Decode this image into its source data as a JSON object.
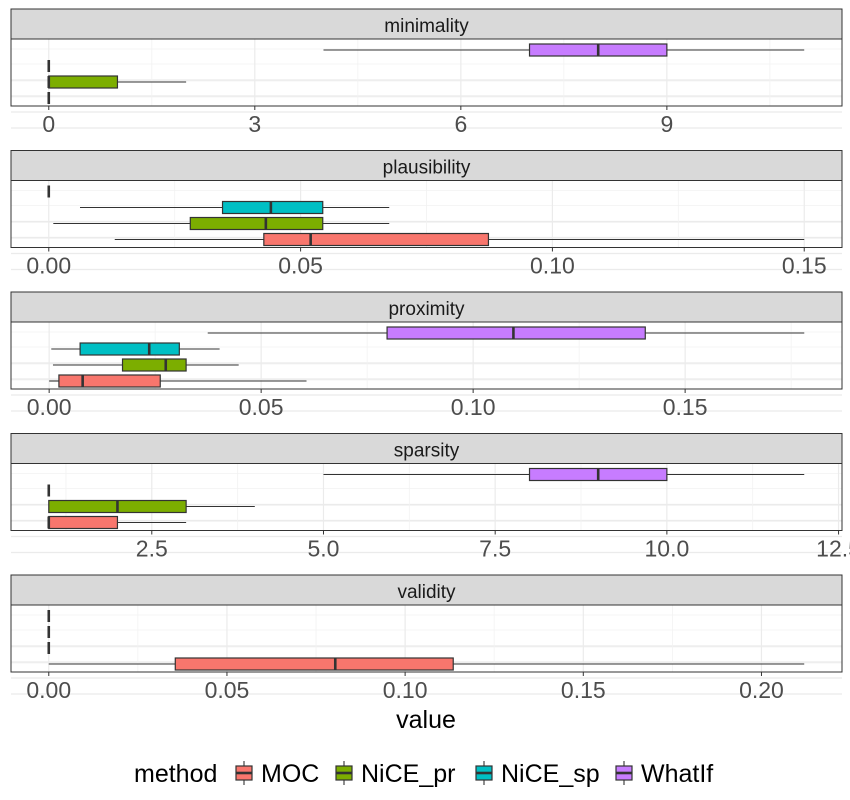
{
  "chart_data": {
    "type": "boxplot",
    "xlabel": "value",
    "legend": {
      "title": "method",
      "position": "bottom",
      "entries": [
        {
          "name": "MOC",
          "color": "#f8766d"
        },
        {
          "name": "NiCE_pr",
          "color": "#7cae00"
        },
        {
          "name": "NiCE_sp",
          "color": "#00bfc4"
        },
        {
          "name": "WhatIf",
          "color": "#c77cff"
        }
      ]
    },
    "methods": [
      "MOC",
      "NiCE_pr",
      "NiCE_sp",
      "WhatIf"
    ],
    "grid": true,
    "panels": [
      {
        "title": "minimality",
        "xlim": [
          -0.55,
          11.55
        ],
        "ticks": [
          0,
          3,
          6,
          9
        ],
        "tick_labels": [
          "0",
          "3",
          "6",
          "9"
        ],
        "minor_ticks": [
          1.5,
          4.5,
          7.5,
          10.5
        ],
        "boxes": [
          {
            "method": "MOC",
            "min": 0,
            "q1": 0,
            "median": 0,
            "q3": 0,
            "max": 0
          },
          {
            "method": "NiCE_pr",
            "min": 0,
            "q1": 0,
            "median": 0,
            "q3": 1,
            "max": 2
          },
          {
            "method": "NiCE_sp",
            "min": 0,
            "q1": 0,
            "median": 0,
            "q3": 0,
            "max": 0
          },
          {
            "method": "WhatIf",
            "min": 4,
            "q1": 7,
            "median": 8,
            "q3": 9,
            "max": 11
          }
        ]
      },
      {
        "title": "plausibility",
        "xlim": [
          -0.0075,
          0.1575
        ],
        "ticks": [
          0.0,
          0.05,
          0.1,
          0.15
        ],
        "tick_labels": [
          "0.00",
          "0.05",
          "0.10",
          "0.15"
        ],
        "minor_ticks": [
          0.025,
          0.075,
          0.125
        ],
        "boxes": [
          {
            "method": "MOC",
            "min": 0.0131,
            "q1": 0.0427,
            "median": 0.052,
            "q3": 0.0873,
            "max": 0.15
          },
          {
            "method": "NiCE_pr",
            "min": 0.0009,
            "q1": 0.0281,
            "median": 0.0431,
            "q3": 0.0544,
            "max": 0.0676
          },
          {
            "method": "NiCE_sp",
            "min": 0.0062,
            "q1": 0.0345,
            "median": 0.0441,
            "q3": 0.0544,
            "max": 0.0676
          },
          {
            "method": "WhatIf",
            "min": 0,
            "q1": 0,
            "median": 0,
            "q3": 0,
            "max": 0
          }
        ]
      },
      {
        "title": "proximity",
        "xlim": [
          -0.009,
          0.187
        ],
        "ticks": [
          0.0,
          0.05,
          0.1,
          0.15
        ],
        "tick_labels": [
          "0.00",
          "0.05",
          "0.10",
          "0.15"
        ],
        "minor_ticks": [
          0.025,
          0.075,
          0.125,
          0.175
        ],
        "boxes": [
          {
            "method": "MOC",
            "min": 0.0,
            "q1": 0.0023,
            "median": 0.0079,
            "q3": 0.0262,
            "max": 0.0607
          },
          {
            "method": "NiCE_pr",
            "min": 0.0009,
            "q1": 0.0173,
            "median": 0.0275,
            "q3": 0.0323,
            "max": 0.0447
          },
          {
            "method": "NiCE_sp",
            "min": 0.0005,
            "q1": 0.0073,
            "median": 0.0236,
            "q3": 0.0307,
            "max": 0.0402
          },
          {
            "method": "WhatIf",
            "min": 0.0374,
            "q1": 0.0797,
            "median": 0.1095,
            "q3": 0.1406,
            "max": 0.1781
          }
        ]
      },
      {
        "title": "sparsity",
        "xlim": [
          0.45,
          12.55
        ],
        "ticks": [
          2.5,
          5.0,
          7.5,
          10.0,
          12.5
        ],
        "tick_labels": [
          "2.5",
          "5.0",
          "7.5",
          "10.0",
          "12.5"
        ],
        "minor_ticks": [
          1.25,
          3.75,
          6.25,
          8.75,
          11.25
        ],
        "boxes": [
          {
            "method": "MOC",
            "min": 1,
            "q1": 1,
            "median": 1,
            "q3": 2,
            "max": 3
          },
          {
            "method": "NiCE_pr",
            "min": 1,
            "q1": 1,
            "median": 2,
            "q3": 3,
            "max": 4
          },
          {
            "method": "NiCE_sp",
            "min": 1,
            "q1": 1,
            "median": 1,
            "q3": 1,
            "max": 1
          },
          {
            "method": "WhatIf",
            "min": 5,
            "q1": 8,
            "median": 9,
            "q3": 10,
            "max": 12
          }
        ]
      },
      {
        "title": "validity",
        "xlim": [
          -0.0106,
          0.2226
        ],
        "ticks": [
          0.0,
          0.05,
          0.1,
          0.15,
          0.2
        ],
        "tick_labels": [
          "0.00",
          "0.05",
          "0.10",
          "0.15",
          "0.20"
        ],
        "minor_ticks": [
          0.025,
          0.075,
          0.125,
          0.175
        ],
        "boxes": [
          {
            "method": "MOC",
            "min": 0.0,
            "q1": 0.0355,
            "median": 0.0804,
            "q3": 0.1135,
            "max": 0.212
          },
          {
            "method": "NiCE_pr",
            "min": 0,
            "q1": 0,
            "median": 0,
            "q3": 0,
            "max": 0
          },
          {
            "method": "NiCE_sp",
            "min": 0,
            "q1": 0,
            "median": 0,
            "q3": 0,
            "max": 0
          },
          {
            "method": "WhatIf",
            "min": 0,
            "q1": 0,
            "median": 0,
            "q3": 0,
            "max": 0
          }
        ]
      }
    ]
  }
}
